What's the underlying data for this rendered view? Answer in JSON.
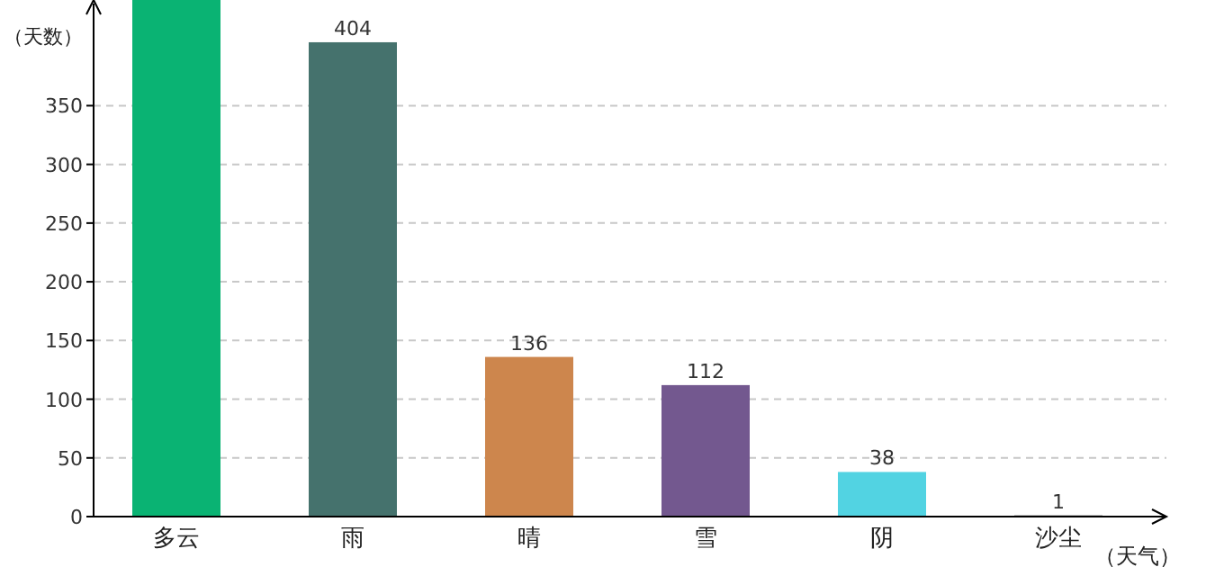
{
  "chart_data": {
    "type": "bar",
    "xlabel": "（天气）",
    "ylabel": "（天数）",
    "categories": [
      "多云",
      "雨",
      "晴",
      "雪",
      "阴",
      "沙尘"
    ],
    "values": [
      440,
      404,
      136,
      112,
      38,
      1
    ],
    "value_labels": [
      null,
      "404",
      "136",
      "112",
      "38",
      "1"
    ],
    "colors": [
      "#0ab373",
      "#45726d",
      "#cd864d",
      "#73588f",
      "#52d3e2",
      "#3a3a3a"
    ],
    "ylim": [
      0,
      440
    ],
    "yticks": [
      0,
      50,
      100,
      150,
      200,
      250,
      300,
      350
    ],
    "grid": "y"
  }
}
